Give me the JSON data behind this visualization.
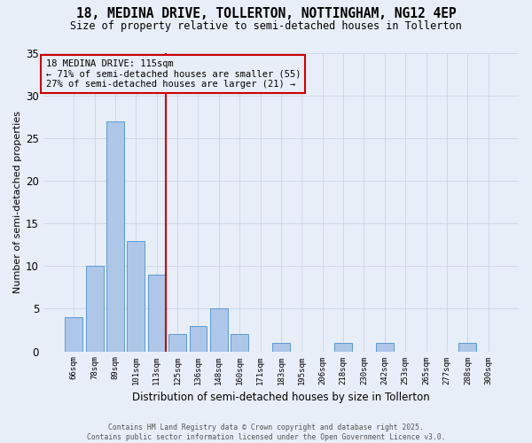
{
  "title": "18, MEDINA DRIVE, TOLLERTON, NOTTINGHAM, NG12 4EP",
  "subtitle": "Size of property relative to semi-detached houses in Tollerton",
  "xlabel": "Distribution of semi-detached houses by size in Tollerton",
  "ylabel": "Number of semi-detached properties",
  "categories": [
    "66sqm",
    "78sqm",
    "89sqm",
    "101sqm",
    "113sqm",
    "125sqm",
    "136sqm",
    "148sqm",
    "160sqm",
    "171sqm",
    "183sqm",
    "195sqm",
    "206sqm",
    "218sqm",
    "230sqm",
    "242sqm",
    "253sqm",
    "265sqm",
    "277sqm",
    "288sqm",
    "300sqm"
  ],
  "values": [
    4,
    10,
    27,
    13,
    9,
    2,
    3,
    5,
    2,
    0,
    1,
    0,
    0,
    1,
    0,
    1,
    0,
    0,
    0,
    1,
    0
  ],
  "bar_color": "#aec6e8",
  "bar_edge_color": "#5b9bd5",
  "grid_color": "#d0d8e8",
  "bg_color": "#e8eef8",
  "ref_line_index": 4,
  "ref_line_label": "18 MEDINA DRIVE: 115sqm",
  "annotation_line1": "← 71% of semi-detached houses are smaller (55)",
  "annotation_line2": "27% of semi-detached houses are larger (21) →",
  "box_color": "#cc0000",
  "footer1": "Contains HM Land Registry data © Crown copyright and database right 2025.",
  "footer2": "Contains public sector information licensed under the Open Government Licence v3.0.",
  "ylim": [
    0,
    35
  ],
  "yticks": [
    0,
    5,
    10,
    15,
    20,
    25,
    30,
    35
  ]
}
